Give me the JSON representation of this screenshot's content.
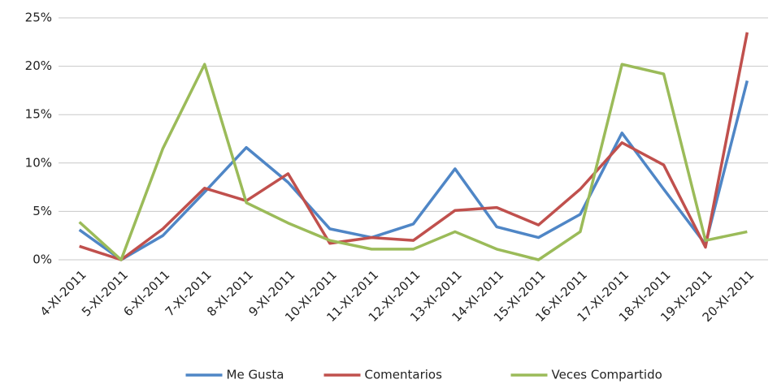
{
  "chart_data": {
    "type": "line",
    "categories": [
      "4-XI-2011",
      "5-XI-2011",
      "6-XI-2011",
      "7-XI-2011",
      "8-XI-2011",
      "9-XI-2011",
      "10-XI-2011",
      "11-XI-2011",
      "12-XI-2011",
      "13-XI-2011",
      "14-XI-2011",
      "15-XI-2011",
      "16-XI-2011",
      "17-XI-2011",
      "18-XI-2011",
      "19-XI-2011",
      "20-XI-2011"
    ],
    "series": [
      {
        "name": "Me Gusta",
        "color": "#4f86c6",
        "values": [
          3.1,
          0,
          2.5,
          7,
          11.6,
          8,
          3.2,
          2.3,
          3.7,
          9.4,
          3.4,
          2.3,
          4.7,
          13.1,
          7.3,
          1.6,
          18.5
        ]
      },
      {
        "name": "Comentarios",
        "color": "#c0504d",
        "values": [
          1.4,
          0,
          3.2,
          7.4,
          6.1,
          8.9,
          1.7,
          2.3,
          2.0,
          5.1,
          5.4,
          3.6,
          7.3,
          12.1,
          9.8,
          1.3,
          23.5
        ]
      },
      {
        "name": "Veces Compartido",
        "color": "#9bbb59",
        "values": [
          3.9,
          0,
          11.5,
          20.2,
          5.9,
          3.8,
          2.0,
          1.1,
          1.1,
          2.9,
          1.1,
          0,
          2.9,
          20.2,
          19.2,
          2.0,
          2.9
        ]
      }
    ],
    "ylim": [
      0,
      25
    ],
    "yticks": [
      {
        "value": 0,
        "label": "0%"
      },
      {
        "value": 5,
        "label": "5%"
      },
      {
        "value": 10,
        "label": "10%"
      },
      {
        "value": 15,
        "label": "15%"
      },
      {
        "value": 20,
        "label": "20%"
      },
      {
        "value": 25,
        "label": "25%"
      }
    ],
    "grid": true,
    "legend": "bottom"
  }
}
